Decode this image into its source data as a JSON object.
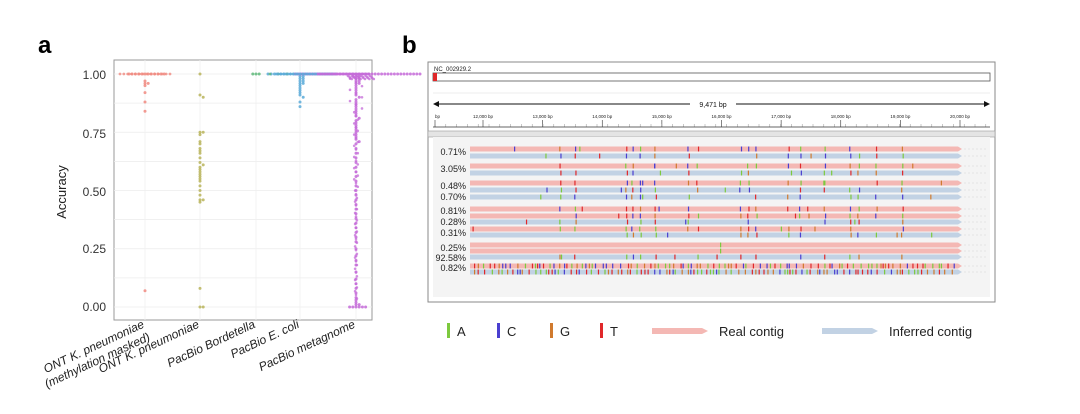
{
  "panel_a": {
    "letter": "a",
    "ylabel": "Accuracy",
    "yticks": [
      "0.00",
      "0.25",
      "0.50",
      "0.75",
      "1.00"
    ],
    "categories": [
      {
        "line1": "ONT K. pneumoniae",
        "line2": "(methylation masked)"
      },
      {
        "line1": "ONT K. pneumoniae",
        "line2": ""
      },
      {
        "line1": "PacBio Bordetella",
        "line2": ""
      },
      {
        "line1": "PacBio E. coli",
        "line2": ""
      },
      {
        "line1": "PacBio metagnome",
        "line2": ""
      }
    ]
  },
  "panel_b": {
    "letter": "b",
    "contig_name": "NC_002929.2",
    "span_label": "9,471 bp",
    "ruler_ticks": [
      "bp",
      "12,000 bp",
      "13,000 bp",
      "14,000 bp",
      "15,000 bp",
      "16,000 bp",
      "17,000 bp",
      "18,000 bp",
      "19,000 bp",
      "20,000 bp"
    ],
    "track_labels": [
      "0.71%",
      "3.05%",
      "0.48%",
      "0.70%",
      "0.81%",
      "0.28%",
      "0.31%",
      "0.25%",
      "92.58%",
      "0.82%"
    ],
    "legend": {
      "A": "A",
      "C": "C",
      "G": "G",
      "T": "T",
      "real": "Real contig",
      "inferred": "Inferred contig"
    }
  },
  "colors": {
    "ont_masked": "#f08a80",
    "ont": "#b8b45a",
    "bordetella": "#5fb87a",
    "ecoli": "#5aaad8",
    "metagenome": "#c46ad8",
    "A": "#7dc93e",
    "C": "#4a3fd0",
    "G": "#d07a2e",
    "T": "#e0282a",
    "real": "#f4b8b4",
    "inferred": "#c2d2e4"
  },
  "chart_data": {
    "type": "scatter",
    "subtype": "beeswarm",
    "ylabel": "Accuracy",
    "ylim": [
      -0.05,
      1.05
    ],
    "yticks": [
      0,
      0.25,
      0.5,
      0.75,
      1.0
    ],
    "categories": [
      "ONT K. pneumoniae (methylation masked)",
      "ONT K. pneumoniae",
      "PacBio Bordetella",
      "PacBio E. coli",
      "PacBio metagnome"
    ],
    "series": [
      {
        "name": "ONT K. pneumoniae (methylation masked)",
        "values": [
          1,
          1,
          1,
          1,
          1,
          1,
          1,
          1,
          1,
          1,
          1,
          1,
          0.97,
          0.96,
          0.96,
          0.95,
          0.92,
          0.88,
          0.84,
          0.07
        ]
      },
      {
        "name": "ONT K. pneumoniae",
        "values": [
          1,
          0.91,
          0.9,
          0.75,
          0.74,
          0.75,
          0.71,
          0.7,
          0.68,
          0.67,
          0.66,
          0.64,
          0.62,
          0.61,
          0.6,
          0.59,
          0.58,
          0.57,
          0.56,
          0.55,
          0.54,
          0.52,
          0.5,
          0.48,
          0.46,
          0.46,
          0.45,
          0.08,
          0.0,
          0.0
        ]
      },
      {
        "name": "PacBio Bordetella",
        "values": [
          1,
          1,
          1
        ]
      },
      {
        "name": "PacBio E. coli",
        "values": [
          1,
          1,
          1,
          1,
          1,
          1,
          1,
          1,
          1,
          1,
          1,
          1,
          1,
          1,
          1,
          1,
          1,
          1,
          1,
          1,
          1,
          1,
          0.99,
          0.99,
          0.98,
          0.98,
          0.97,
          0.97,
          0.96,
          0.96,
          0.95,
          0.94,
          0.93,
          0.92,
          0.91,
          0.9,
          0.88,
          0.86
        ]
      },
      {
        "name": "PacBio metagnome",
        "values": [
          1,
          1,
          1,
          1,
          1,
          1,
          1,
          1,
          1,
          1,
          1,
          1,
          1,
          1,
          1,
          1,
          1,
          1,
          1,
          1,
          1,
          1,
          1,
          1,
          1,
          1,
          1,
          1,
          1,
          1,
          1,
          1,
          1,
          1,
          1,
          1,
          1,
          1,
          1,
          1,
          0.99,
          0.99,
          0.99,
          0.98,
          0.98,
          0.97,
          0.97,
          0.96,
          0.96,
          0.95,
          0.94,
          0.93,
          0.92,
          0.91,
          0.9,
          0.89,
          0.88,
          0.87,
          0.86,
          0.85,
          0.84,
          0.83,
          0.82,
          0.81,
          0.8,
          0.79,
          0.78,
          0.77,
          0.76,
          0.75,
          0.74,
          0.73,
          0.72,
          0.71,
          0.7,
          0.68,
          0.66,
          0.64,
          0.62,
          0.6,
          0.58,
          0.56,
          0.54,
          0.52,
          0.5,
          0.48,
          0.46,
          0.44,
          0.42,
          0.4,
          0.38,
          0.36,
          0.34,
          0.32,
          0.3,
          0.28,
          0.25,
          0.22,
          0.2,
          0.18,
          0.15,
          0.12,
          0.1,
          0.08,
          0.06,
          0.04,
          0.03,
          0.02,
          0.01,
          0.01,
          0.0,
          0.0,
          0.0,
          0.0,
          0.0,
          0.0
        ]
      }
    ]
  }
}
